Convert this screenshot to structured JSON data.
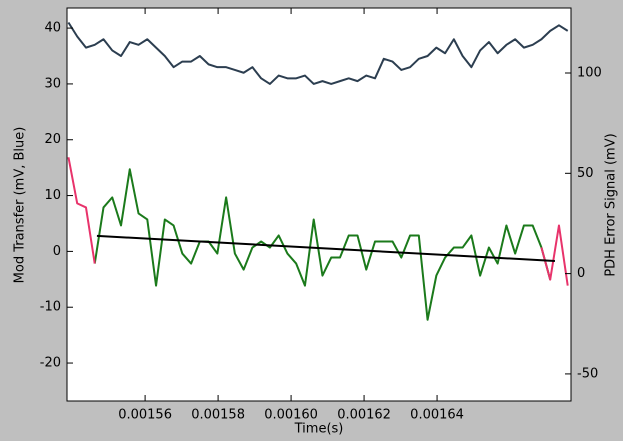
{
  "chart_data": {
    "type": "line",
    "xlabel": "Time(s)",
    "ylabel": "Mod Transfer (mV, Blue)",
    "y2label": "PDH Error Signal (mV)",
    "xlim": [
      0.0015386,
      0.0016767
    ],
    "xticks": [
      0.00156,
      0.00158,
      {
        "value": 0.0016,
        "label": "0.00160"
      },
      0.00162,
      0.00164
    ],
    "ylim": [
      -26.8,
      43.6
    ],
    "yticks": [
      -20,
      -10,
      0,
      10,
      20,
      30,
      40
    ],
    "y2lim": [
      -63.5,
      132.4
    ],
    "y2ticks": [
      -50,
      0,
      50,
      100
    ],
    "grid": false,
    "x": [
      0.001539,
      0.0015414,
      0.0015438,
      0.0015462,
      0.0015486,
      0.001551,
      0.0015534,
      0.0015558,
      0.0015582,
      0.0015606,
      0.001563,
      0.0015654,
      0.0015678,
      0.0015702,
      0.0015726,
      0.001575,
      0.0015774,
      0.0015798,
      0.0015822,
      0.0015846,
      0.001587,
      0.0015894,
      0.0015918,
      0.0015942,
      0.0015966,
      0.001599,
      0.0016014,
      0.0016038,
      0.0016062,
      0.0016086,
      0.001611,
      0.0016134,
      0.0016158,
      0.0016182,
      0.0016206,
      0.001623,
      0.0016254,
      0.0016278,
      0.0016302,
      0.0016326,
      0.001635,
      0.0016374,
      0.0016398,
      0.0016422,
      0.0016446,
      0.001647,
      0.0016494,
      0.0016518,
      0.0016542,
      0.0016566,
      0.001659,
      0.0016614,
      0.0016638,
      0.0016662,
      0.0016686,
      0.001671,
      0.0016734,
      0.0016758
    ],
    "series": [
      {
        "color": "#2c3e50",
        "axis": "y",
        "values": [
          41,
          38.5,
          36.5,
          37,
          38,
          36,
          35,
          37.5,
          37,
          38,
          36.5,
          35,
          33,
          34,
          34,
          35,
          33.5,
          33,
          33,
          32.5,
          32,
          33,
          31,
          30,
          31.5,
          31,
          31,
          31.5,
          30,
          30.5,
          30,
          30.5,
          31,
          30.5,
          31.5,
          31,
          34.5,
          34,
          32.5,
          33,
          34.5,
          35,
          36.5,
          35.5,
          38,
          35,
          33,
          36,
          37.5,
          35.5,
          37,
          38,
          36.5,
          37,
          38,
          39.5,
          40.5,
          39.5
        ]
      },
      {
        "color": "#1b7a1b",
        "axis": "y2",
        "values": [
          null,
          null,
          null,
          5,
          33,
          38,
          24,
          52,
          30,
          27,
          -6,
          27,
          24,
          10,
          5,
          16,
          16,
          10,
          38,
          10,
          2,
          13,
          16,
          13,
          19,
          10,
          5,
          -6,
          27,
          -1,
          8,
          8,
          19,
          19,
          2,
          16,
          16,
          16,
          8,
          19,
          19,
          -23,
          -1,
          8,
          13,
          13,
          19,
          -1,
          13,
          5,
          24,
          10,
          24,
          24,
          13,
          -3,
          null,
          null
        ]
      },
      {
        "color": "#e8336b",
        "axis": "y2",
        "values": [
          58,
          35,
          33,
          5,
          null,
          null,
          null,
          null,
          null,
          null,
          null,
          null,
          null,
          null,
          null,
          null,
          null,
          null,
          null,
          null,
          null,
          null,
          null,
          null,
          null,
          null,
          null,
          null,
          null,
          null,
          null,
          null,
          null,
          null,
          null,
          null,
          null,
          null,
          null,
          null,
          null,
          null,
          null,
          null,
          null,
          null,
          null,
          null,
          null,
          null,
          null,
          null,
          null,
          null,
          13,
          -3,
          24,
          -6
        ]
      },
      {
        "color": "#000000",
        "axis": "y2",
        "x": [
          0.0015468,
          0.0016723
        ],
        "values": [
          18.8,
          6.3
        ]
      }
    ]
  }
}
